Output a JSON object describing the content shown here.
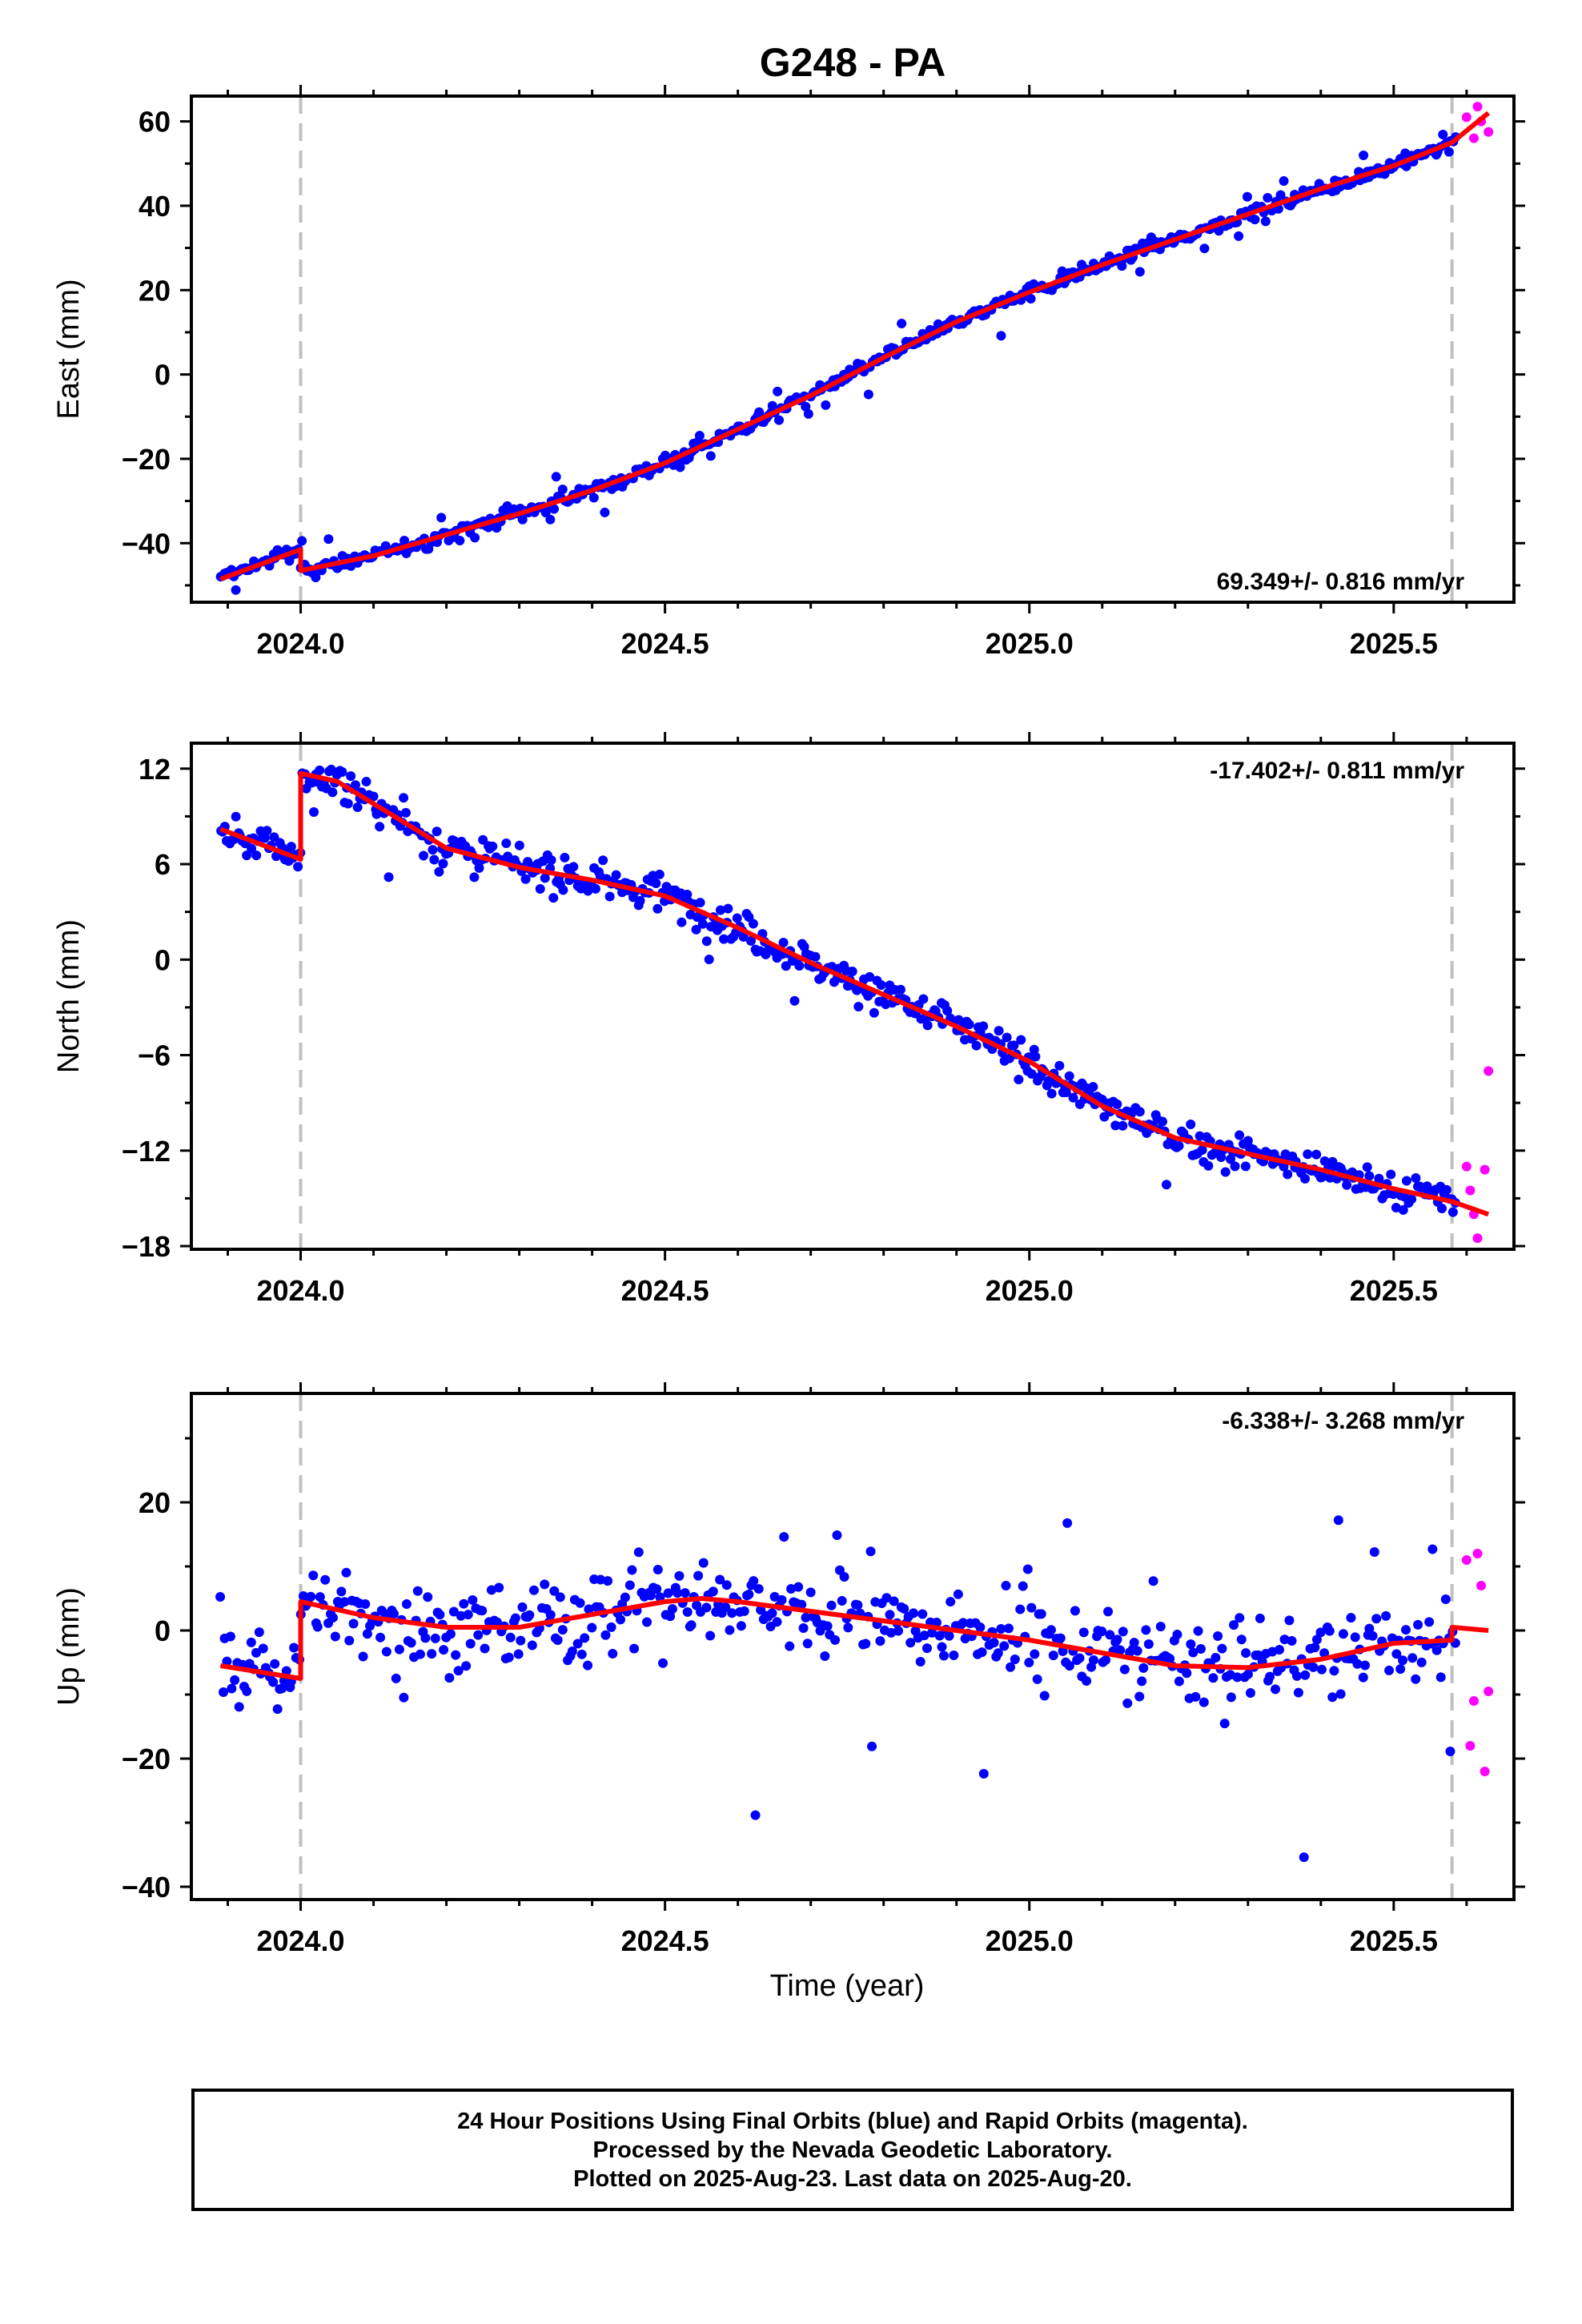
{
  "title": "G248 - PA",
  "colors": {
    "final": "#0000ff",
    "rapid": "#ff00ff",
    "model": "#ff0000",
    "event": "#c0c0c0",
    "axes": "#000000"
  },
  "xlabel": "Time (year)",
  "footer": {
    "line1": "24 Hour Positions Using Final Orbits (blue) and Rapid Orbits (magenta).",
    "line2": "Processed by the Nevada Geodetic Laboratory.",
    "line3": "Plotted on 2025-Aug-23. Last data on 2025-Aug-20."
  },
  "chart_data": [
    {
      "type": "scatter",
      "ylabel": "East (mm)",
      "velocity_label": "69.349+/- 0.816 mm/yr",
      "label_corner": "bottom-right",
      "xlim": [
        2023.85,
        2025.665
      ],
      "ylim": [
        -54,
        66
      ],
      "xticks": [
        2024.0,
        2024.5,
        2025.0,
        2025.5
      ],
      "xtick_labels": [
        "2024.0",
        "2024.5",
        "2025.0",
        "2025.5"
      ],
      "xminor": 0.1,
      "yticks": [
        -40,
        -20,
        0,
        20,
        40,
        60
      ],
      "ytick_labels": [
        "−40",
        "−20",
        "0",
        "20",
        "40",
        "60"
      ],
      "yminor": 10,
      "event_lines": [
        2024.0,
        2025.58
      ],
      "model": {
        "x": [
          2023.89,
          2024.0,
          2024.0,
          2024.1,
          2024.2,
          2024.3,
          2024.4,
          2024.5,
          2024.6,
          2024.7,
          2024.8,
          2024.9,
          2025.0,
          2025.1,
          2025.2,
          2025.3,
          2025.4,
          2025.5,
          2025.58,
          2025.63
        ],
        "y": [
          -48.5,
          -41.5,
          -46.5,
          -43,
          -38,
          -33,
          -27.5,
          -21,
          -13,
          -5,
          4,
          12.5,
          19.5,
          26,
          32,
          38,
          44,
          49.5,
          55,
          62
        ]
      },
      "series": [
        {
          "name": "Final Orbits",
          "color": "#0000ff",
          "x0": 2023.89,
          "x1": 2025.585,
          "n": 560,
          "noise": 1.4,
          "outliers": 0.06,
          "outlier_scale": 5.5
        },
        {
          "name": "Rapid Orbits",
          "color": "#ff00ff",
          "x": [
            2025.6,
            2025.61,
            2025.615,
            2025.62,
            2025.63
          ],
          "y": [
            61,
            56,
            63.5,
            60,
            57.5
          ]
        }
      ]
    },
    {
      "type": "scatter",
      "ylabel": "North (mm)",
      "velocity_label": "-17.402+/- 0.811 mm/yr",
      "label_corner": "top-right",
      "xlim": [
        2023.85,
        2025.665
      ],
      "ylim": [
        -18.2,
        13.6
      ],
      "xticks": [
        2024.0,
        2024.5,
        2025.0,
        2025.5
      ],
      "xtick_labels": [
        "2024.0",
        "2024.5",
        "2025.0",
        "2025.5"
      ],
      "xminor": 0.1,
      "yticks": [
        -18,
        -12,
        -6,
        0,
        6,
        12
      ],
      "ytick_labels": [
        "−18",
        "−12",
        "−6",
        "0",
        "6",
        "12"
      ],
      "yminor": 3,
      "event_lines": [
        2024.0,
        2025.58
      ],
      "model": {
        "x": [
          2023.89,
          2024.0,
          2024.0,
          2024.05,
          2024.1,
          2024.2,
          2024.3,
          2024.4,
          2024.5,
          2024.6,
          2024.7,
          2024.8,
          2024.9,
          2025.0,
          2025.1,
          2025.2,
          2025.3,
          2025.4,
          2025.5,
          2025.58,
          2025.63
        ],
        "y": [
          8.2,
          6.3,
          11.7,
          11.2,
          9.8,
          7.0,
          5.8,
          5.0,
          4.0,
          2.0,
          -0.2,
          -2.2,
          -4.2,
          -6.4,
          -9.2,
          -11.2,
          -12.2,
          -13.2,
          -14.4,
          -15.2,
          -16.0
        ]
      },
      "series": [
        {
          "name": "Final Orbits",
          "color": "#0000ff",
          "x0": 2023.89,
          "x1": 2025.585,
          "n": 560,
          "noise": 0.9,
          "outliers": 0.05,
          "outlier_scale": 4.0
        },
        {
          "name": "Rapid Orbits",
          "color": "#ff00ff",
          "x": [
            2025.6,
            2025.605,
            2025.61,
            2025.615,
            2025.625,
            2025.63
          ],
          "y": [
            -13,
            -14.5,
            -16,
            -17.5,
            -13.2,
            -7
          ]
        }
      ]
    },
    {
      "type": "scatter",
      "ylabel": "Up (mm)",
      "velocity_label": "-6.338+/- 3.268 mm/yr",
      "label_corner": "top-right",
      "xlim": [
        2023.85,
        2025.665
      ],
      "ylim": [
        -42,
        37
      ],
      "xticks": [
        2024.0,
        2024.5,
        2025.0,
        2025.5
      ],
      "xtick_labels": [
        "2024.0",
        "2024.5",
        "2025.0",
        "2025.5"
      ],
      "xminor": 0.1,
      "yticks": [
        -40,
        -20,
        0,
        20
      ],
      "ytick_labels": [
        "−40",
        "−20",
        "0",
        "20"
      ],
      "yminor": 10,
      "event_lines": [
        2024.0,
        2025.58
      ],
      "model": {
        "x": [
          2023.89,
          2024.0,
          2024.0,
          2024.1,
          2024.2,
          2024.3,
          2024.4,
          2024.5,
          2024.55,
          2024.6,
          2024.7,
          2024.8,
          2024.9,
          2025.0,
          2025.1,
          2025.2,
          2025.3,
          2025.4,
          2025.5,
          2025.58,
          2025.58,
          2025.63
        ],
        "y": [
          -5.5,
          -7.5,
          4.5,
          2.0,
          0.5,
          0.5,
          2.5,
          4.5,
          5.0,
          4.5,
          3.0,
          1.5,
          0,
          -1.5,
          -3.5,
          -5.5,
          -5.8,
          -4.5,
          -2.0,
          -1.5,
          0.5,
          0
        ]
      },
      "series": [
        {
          "name": "Final Orbits",
          "color": "#0000ff",
          "x0": 2023.89,
          "x1": 2025.585,
          "n": 520,
          "noise": 5.0,
          "outliers": 0.07,
          "outlier_scale": 4.0
        },
        {
          "name": "Rapid Orbits",
          "color": "#ff00ff",
          "x": [
            2025.6,
            2025.605,
            2025.61,
            2025.615,
            2025.62,
            2025.625,
            2025.63
          ],
          "y": [
            11,
            -18,
            -11,
            12,
            7,
            -22,
            -9.5
          ]
        }
      ]
    }
  ]
}
